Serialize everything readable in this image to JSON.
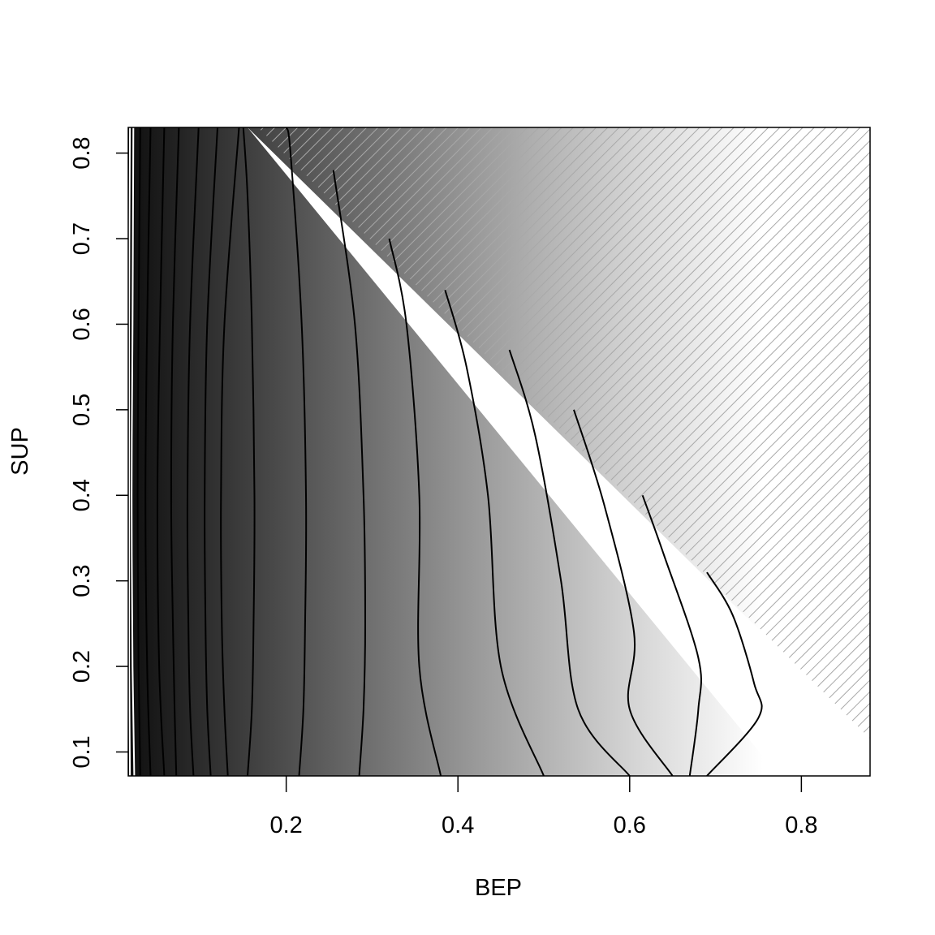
{
  "chart_data": {
    "type": "contour",
    "title": "",
    "xlabel": "BEP",
    "ylabel": "SUP",
    "xlim": [
      0.016,
      0.88
    ],
    "ylim": [
      0.072,
      0.83
    ],
    "x_ticks": [
      0.2,
      0.4,
      0.6,
      0.8
    ],
    "x_tick_labels": [
      "0.2",
      "0.4",
      "0.6",
      "0.8"
    ],
    "y_ticks": [
      0.1,
      0.2,
      0.3,
      0.4,
      0.5,
      0.6,
      0.7,
      0.8
    ],
    "y_tick_labels": [
      "0.1",
      "0.2",
      "0.3",
      "0.4",
      "0.5",
      "0.6",
      "0.7",
      "0.8"
    ],
    "fill": "grayscale, darkest at low BEP, white at high BEP",
    "infeasible_region": {
      "pattern": "diagonal hatching",
      "boundary": [
        [
          0.16,
          0.83
        ],
        [
          0.88,
          0.12
        ]
      ]
    },
    "grid": false,
    "legend": "none",
    "contour_lines": [
      {
        "label": "",
        "points": [
          [
            0.018,
            0.072
          ],
          [
            0.017,
            0.2
          ],
          [
            0.017,
            0.4
          ],
          [
            0.017,
            0.6
          ],
          [
            0.018,
            0.83
          ]
        ]
      },
      {
        "label": "",
        "points": [
          [
            0.023,
            0.072
          ],
          [
            0.021,
            0.2
          ],
          [
            0.02,
            0.4
          ],
          [
            0.021,
            0.6
          ],
          [
            0.022,
            0.83
          ]
        ]
      },
      {
        "label": "",
        "points": [
          [
            0.03,
            0.072
          ],
          [
            0.028,
            0.2
          ],
          [
            0.027,
            0.4
          ],
          [
            0.028,
            0.6
          ],
          [
            0.03,
            0.83
          ]
        ]
      },
      {
        "label": "",
        "points": [
          [
            0.042,
            0.072
          ],
          [
            0.038,
            0.2
          ],
          [
            0.036,
            0.4
          ],
          [
            0.038,
            0.6
          ],
          [
            0.042,
            0.83
          ]
        ]
      },
      {
        "label": "",
        "points": [
          [
            0.058,
            0.072
          ],
          [
            0.052,
            0.2
          ],
          [
            0.05,
            0.4
          ],
          [
            0.053,
            0.6
          ],
          [
            0.058,
            0.83
          ]
        ]
      },
      {
        "label": "",
        "points": [
          [
            0.072,
            0.072
          ],
          [
            0.07,
            0.15
          ],
          [
            0.068,
            0.25
          ],
          [
            0.066,
            0.4
          ],
          [
            0.068,
            0.6
          ],
          [
            0.075,
            0.83
          ]
        ]
      },
      {
        "label": "",
        "points": [
          [
            0.092,
            0.072
          ],
          [
            0.088,
            0.15
          ],
          [
            0.086,
            0.25
          ],
          [
            0.085,
            0.4
          ],
          [
            0.088,
            0.6
          ],
          [
            0.098,
            0.83
          ]
        ]
      },
      {
        "label": "",
        "points": [
          [
            0.112,
            0.072
          ],
          [
            0.108,
            0.15
          ],
          [
            0.106,
            0.25
          ],
          [
            0.105,
            0.4
          ],
          [
            0.108,
            0.6
          ],
          [
            0.12,
            0.83
          ]
        ]
      },
      {
        "label": "",
        "points": [
          [
            0.132,
            0.072
          ],
          [
            0.128,
            0.15
          ],
          [
            0.125,
            0.25
          ],
          [
            0.124,
            0.4
          ],
          [
            0.128,
            0.6
          ],
          [
            0.145,
            0.83
          ]
        ]
      },
      {
        "label": "",
        "points": [
          [
            0.155,
            0.072
          ],
          [
            0.16,
            0.15
          ],
          [
            0.162,
            0.25
          ],
          [
            0.163,
            0.4
          ],
          [
            0.16,
            0.6
          ],
          [
            0.155,
            0.75
          ],
          [
            0.15,
            0.83
          ]
        ]
      },
      {
        "label": "",
        "points": [
          [
            0.215,
            0.072
          ],
          [
            0.22,
            0.15
          ],
          [
            0.222,
            0.25
          ],
          [
            0.223,
            0.4
          ],
          [
            0.218,
            0.6
          ],
          [
            0.205,
            0.8
          ],
          [
            0.2,
            0.83
          ]
        ]
      },
      {
        "label": "",
        "points": [
          [
            0.285,
            0.072
          ],
          [
            0.29,
            0.15
          ],
          [
            0.292,
            0.25
          ],
          [
            0.29,
            0.4
          ],
          [
            0.28,
            0.6
          ],
          [
            0.255,
            0.78
          ]
        ]
      },
      {
        "label": "",
        "points": [
          [
            0.38,
            0.072
          ],
          [
            0.355,
            0.2
          ],
          [
            0.355,
            0.4
          ],
          [
            0.34,
            0.6
          ],
          [
            0.32,
            0.7
          ]
        ]
      },
      {
        "label": "",
        "points": [
          [
            0.5,
            0.072
          ],
          [
            0.45,
            0.2
          ],
          [
            0.435,
            0.4
          ],
          [
            0.41,
            0.55
          ],
          [
            0.385,
            0.64
          ]
        ]
      },
      {
        "label": "",
        "points": [
          [
            0.6,
            0.072
          ],
          [
            0.54,
            0.15
          ],
          [
            0.52,
            0.3
          ],
          [
            0.49,
            0.47
          ],
          [
            0.46,
            0.57
          ]
        ]
      },
      {
        "label": "",
        "points": [
          [
            0.65,
            0.072
          ],
          [
            0.6,
            0.15
          ],
          [
            0.605,
            0.24
          ],
          [
            0.57,
            0.39
          ],
          [
            0.535,
            0.5
          ]
        ]
      },
      {
        "label": "",
        "points": [
          [
            0.67,
            0.072
          ],
          [
            0.68,
            0.15
          ],
          [
            0.68,
            0.21
          ],
          [
            0.64,
            0.33
          ],
          [
            0.615,
            0.4
          ]
        ]
      },
      {
        "label": "",
        "points": [
          [
            0.69,
            0.072
          ],
          [
            0.75,
            0.14
          ],
          [
            0.745,
            0.18
          ],
          [
            0.72,
            0.26
          ],
          [
            0.69,
            0.31
          ]
        ]
      }
    ]
  }
}
